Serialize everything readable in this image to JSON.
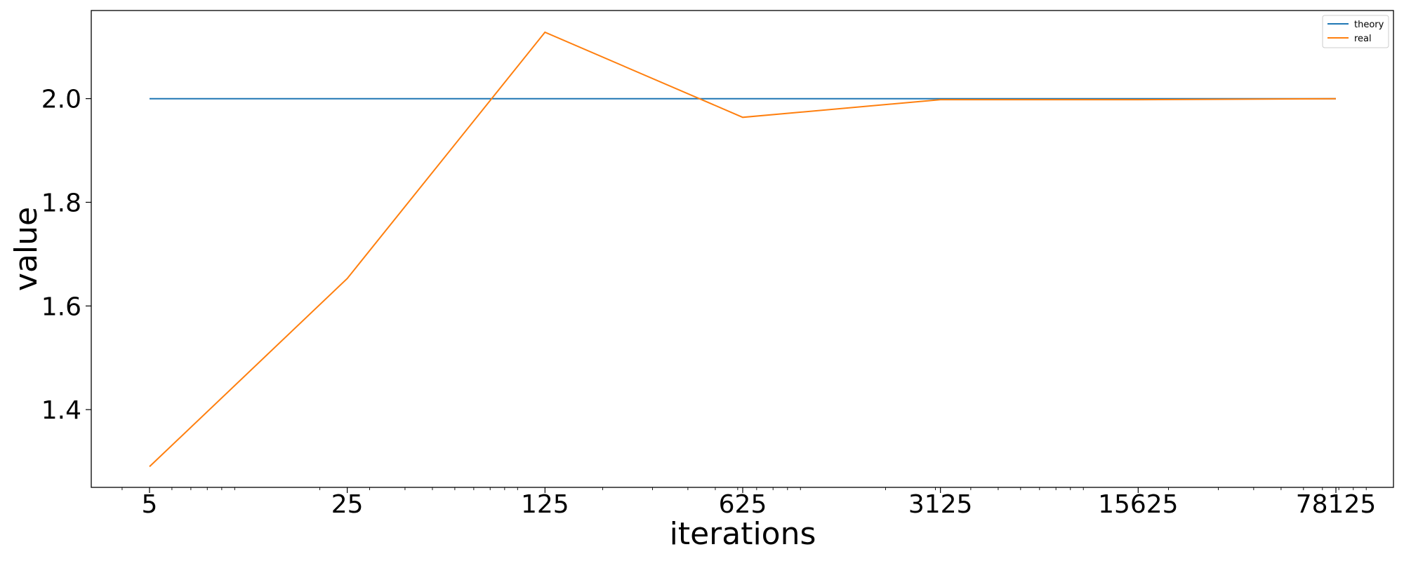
{
  "chart_data": {
    "type": "line",
    "title": "",
    "xlabel": "iterations",
    "ylabel": "value",
    "x_scale": "log",
    "x": [
      5,
      25,
      125,
      625,
      3125,
      15625,
      78125
    ],
    "x_tick_labels": [
      "5",
      "25",
      "125",
      "625",
      "3125",
      "15625",
      "78125"
    ],
    "y_ticks": [
      1.4,
      1.6,
      1.8,
      2.0
    ],
    "y_tick_labels": [
      "1.4",
      "1.6",
      "1.8",
      "2.0"
    ],
    "ylim": [
      1.25,
      2.17
    ],
    "grid": false,
    "legend_position": "top-right",
    "series": [
      {
        "name": "theory",
        "color": "#1f77b4",
        "values": [
          2.0,
          2.0,
          2.0,
          2.0,
          2.0,
          2.0,
          2.0
        ]
      },
      {
        "name": "real",
        "color": "#ff7f0e",
        "values": [
          1.29,
          1.653,
          2.128,
          1.964,
          1.998,
          1.998,
          2.0
        ]
      }
    ]
  }
}
